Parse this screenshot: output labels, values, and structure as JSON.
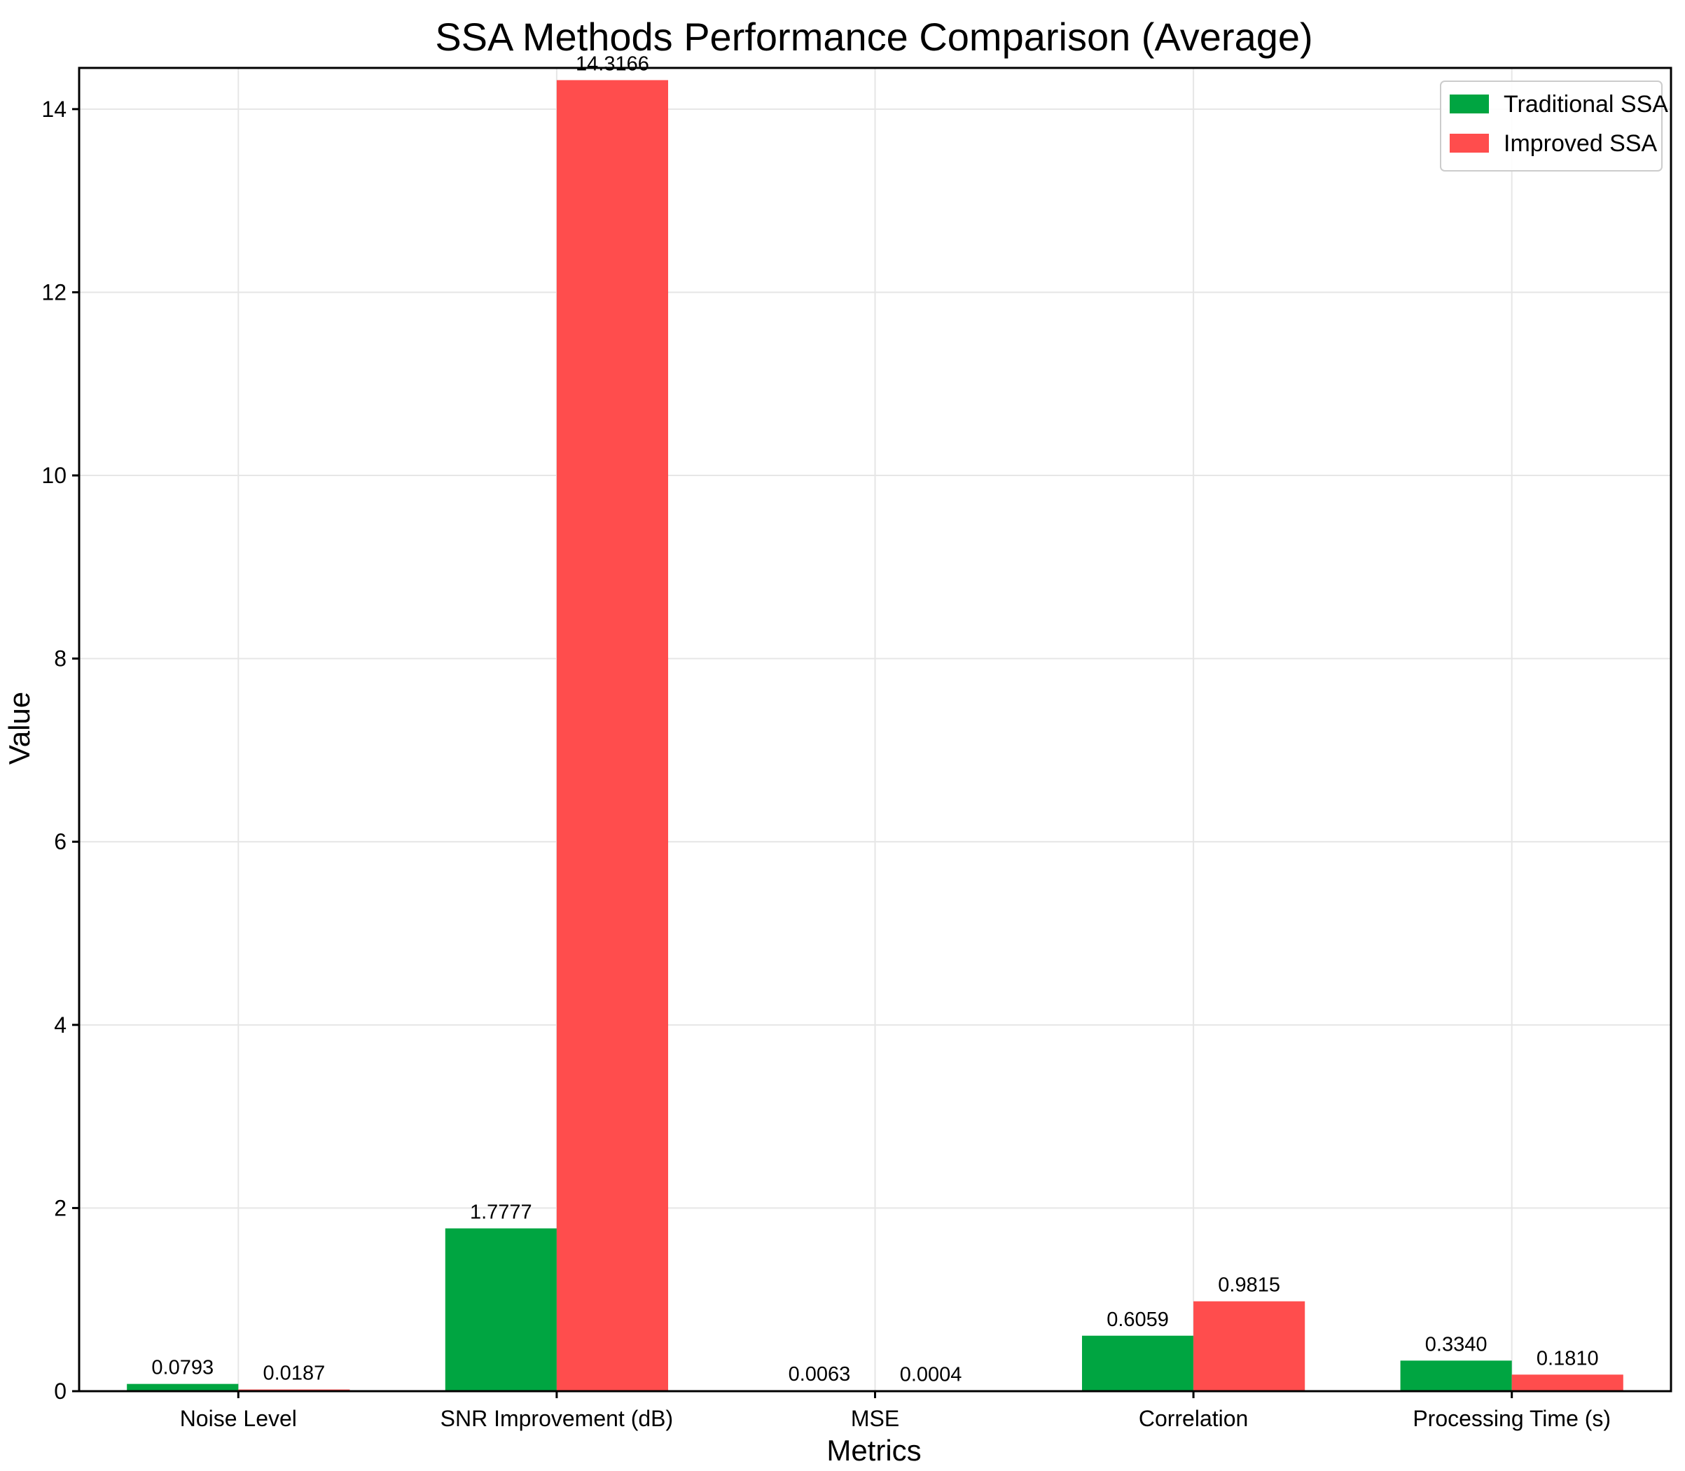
{
  "chart_data": {
    "type": "bar",
    "title": "SSA Methods Performance Comparison (Average)",
    "xlabel": "Metrics",
    "ylabel": "Value",
    "categories": [
      "Noise Level",
      "SNR Improvement (dB)",
      "MSE",
      "Correlation",
      "Processing Time (s)"
    ],
    "series": [
      {
        "name": "Traditional SSA",
        "color": "#00a541",
        "values": [
          0.0793,
          1.7777,
          0.0063,
          0.6059,
          0.334
        ],
        "labels": [
          "0.0793",
          "1.7777",
          "0.0063",
          "0.6059",
          "0.3340"
        ]
      },
      {
        "name": "Improved SSA",
        "color": "#ff4d4d",
        "values": [
          0.0187,
          14.3166,
          0.0004,
          0.9815,
          0.181
        ],
        "labels": [
          "0.0187",
          "14.3166",
          "0.0004",
          "0.9815",
          "0.1810"
        ]
      }
    ],
    "ylim": [
      0,
      14.45
    ],
    "yticks": [
      0,
      2,
      4,
      6,
      8,
      10,
      12,
      14
    ],
    "ytick_labels": [
      "0",
      "2",
      "4",
      "6",
      "8",
      "10",
      "12",
      "14"
    ],
    "grid": true,
    "legend": "top-right"
  }
}
